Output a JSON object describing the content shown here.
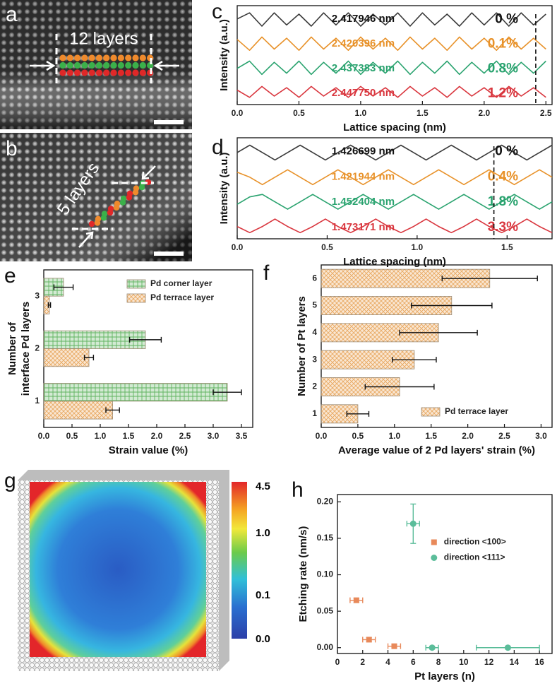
{
  "images": {
    "a": {
      "letter": "a",
      "label": "12 layers"
    },
    "b": {
      "letter": "b",
      "label": "5 layers"
    },
    "g": {
      "letter": "g",
      "colorbar_ticks": [
        "4.5",
        "1.0",
        "0.1",
        "0.0"
      ]
    }
  },
  "chart_data": [
    {
      "type": "line",
      "panel_label": "c",
      "xlabel": "Lattice spacing (nm)",
      "ylabel": "Intensity (a.u.)",
      "xlim": [
        0,
        2.55
      ],
      "ylim": [
        -0.5,
        3.6
      ],
      "xticks": [
        {
          "value": 0,
          "label": "0.0"
        },
        0.5,
        {
          "value": 1,
          "label": "1.0"
        },
        1.5,
        {
          "value": 2,
          "label": "2.0"
        },
        2.5
      ],
      "x": [
        0,
        0.1,
        0.2,
        0.3,
        0.4,
        0.5,
        0.6,
        0.7,
        0.8,
        0.9,
        1.0,
        1.1,
        1.2,
        1.3,
        1.4,
        1.5,
        1.6,
        1.7,
        1.8,
        1.9,
        2.0,
        2.1,
        2.2,
        2.3,
        2.4,
        2.5
      ],
      "series": [
        {
          "color": "#3a3a3a",
          "text_color": "#111111",
          "spacing": {
            "value": 2.417946,
            "label": "2.417946 nm"
          },
          "strain": {
            "value": 0,
            "label": "0 %"
          },
          "values": [
            3.05,
            3.3,
            2.75,
            3.3,
            2.8,
            3.25,
            2.75,
            3.3,
            2.8,
            3.3,
            2.75,
            3.25,
            2.8,
            3.3,
            2.75,
            3.3,
            2.8,
            3.25,
            2.75,
            3.3,
            2.8,
            3.3,
            2.75,
            3.3,
            2.8,
            3.25
          ]
        },
        {
          "color": "#e8922a",
          "text_color": "#e8922a",
          "spacing": {
            "value": 2.420396,
            "label": "2.420396 nm"
          },
          "strain": {
            "value": 0.1,
            "label": "0.1%"
          },
          "values": [
            2.2,
            1.75,
            2.3,
            1.8,
            2.25,
            1.75,
            2.3,
            1.8,
            2.25,
            1.75,
            2.3,
            1.8,
            2.25,
            1.75,
            2.3,
            1.8,
            2.25,
            1.75,
            2.3,
            1.8,
            2.25,
            1.75,
            2.3,
            1.8,
            2.25,
            1.8
          ]
        },
        {
          "color": "#2aa36f",
          "text_color": "#2aa36f",
          "spacing": {
            "value": 2.437383,
            "label": "2.437383 nm"
          },
          "strain": {
            "value": 0.8,
            "label": "0.8%"
          },
          "values": [
            1.0,
            1.3,
            0.75,
            1.25,
            0.8,
            1.3,
            0.75,
            1.25,
            0.8,
            1.3,
            0.75,
            1.25,
            0.8,
            1.3,
            0.75,
            1.25,
            0.8,
            1.3,
            0.75,
            1.25,
            0.8,
            1.3,
            0.75,
            1.25,
            0.8,
            1.3
          ]
        },
        {
          "color": "#d9363e",
          "text_color": "#d9363e",
          "spacing": {
            "value": 2.44775,
            "label": "2.447750 nm"
          },
          "strain": {
            "value": 1.2,
            "label": "1.2%"
          },
          "values": [
            0.1,
            -0.2,
            0.25,
            -0.15,
            0.2,
            -0.2,
            0.25,
            -0.15,
            0.2,
            -0.2,
            0.25,
            -0.15,
            0.2,
            -0.2,
            0.25,
            -0.15,
            0.2,
            -0.2,
            0.25,
            -0.15,
            0.2,
            -0.2,
            0.25,
            -0.15,
            0.2,
            -0.2
          ]
        }
      ]
    },
    {
      "type": "line",
      "panel_label": "d",
      "xlabel": "Lattice spacing (nm)",
      "ylabel": "Intensity (a.u.)",
      "xlim": [
        0,
        1.75
      ],
      "ylim": [
        -0.5,
        3.6
      ],
      "xticks": [
        {
          "value": 0,
          "label": "0.0"
        },
        0.5,
        {
          "value": 1,
          "label": "1.0"
        },
        1.5
      ],
      "x": [
        0,
        0.07,
        0.14,
        0.21,
        0.28,
        0.35,
        0.42,
        0.49,
        0.56,
        0.63,
        0.7,
        0.77,
        0.84,
        0.91,
        0.98,
        1.05,
        1.12,
        1.19,
        1.26,
        1.33,
        1.4,
        1.47,
        1.54,
        1.61,
        1.68,
        1.75
      ],
      "series": [
        {
          "color": "#3a3a3a",
          "text_color": "#111111",
          "spacing": {
            "value": 1.426699,
            "label": "1.426699 nm"
          },
          "strain": {
            "value": 0,
            "label": "0 %"
          },
          "values": [
            3.0,
            3.3,
            3.0,
            2.7,
            3.0,
            3.3,
            3.0,
            2.7,
            3.0,
            3.3,
            3.0,
            2.7,
            3.0,
            3.3,
            3.0,
            2.7,
            3.0,
            3.3,
            3.0,
            2.7,
            3.0,
            3.3,
            3.0,
            2.7,
            3.0,
            3.3
          ]
        },
        {
          "color": "#e8922a",
          "text_color": "#e8922a",
          "spacing": {
            "value": 1.421944,
            "label": "1.421944 nm"
          },
          "strain": {
            "value": 0.4,
            "label": "0.4%"
          },
          "values": [
            2.2,
            2.0,
            1.7,
            2.0,
            2.3,
            2.0,
            1.7,
            2.0,
            2.3,
            2.0,
            1.7,
            2.0,
            2.3,
            2.0,
            1.7,
            2.0,
            2.3,
            2.0,
            1.7,
            2.0,
            2.3,
            2.0,
            1.7,
            2.0,
            2.3,
            2.0
          ]
        },
        {
          "color": "#2aa36f",
          "text_color": "#2aa36f",
          "spacing": {
            "value": 1.452404,
            "label": "1.452404 nm"
          },
          "strain": {
            "value": 1.8,
            "label": "1.8%"
          },
          "values": [
            0.9,
            1.2,
            1.3,
            1.0,
            0.7,
            1.0,
            1.3,
            1.0,
            0.7,
            1.0,
            1.3,
            1.0,
            0.7,
            1.0,
            1.3,
            1.0,
            0.7,
            1.0,
            1.3,
            1.0,
            0.7,
            1.0,
            1.3,
            1.0,
            0.7,
            1.0
          ]
        },
        {
          "color": "#d9363e",
          "text_color": "#d9363e",
          "spacing": {
            "value": 1.473171,
            "label": "1.473171 nm"
          },
          "strain": {
            "value": 3.3,
            "label": "3.3%"
          },
          "values": [
            0.0,
            -0.25,
            0.0,
            0.3,
            0.0,
            -0.25,
            0.0,
            0.3,
            0.0,
            -0.25,
            0.0,
            0.3,
            0.0,
            -0.25,
            0.0,
            0.3,
            0.0,
            -0.25,
            0.0,
            0.3,
            0.0,
            -0.25,
            0.0,
            0.3,
            0.0,
            -0.25
          ]
        }
      ]
    },
    {
      "type": "hbar",
      "panel_label": "e",
      "xlabel": "Strain value (%)",
      "ylabel": [
        "Number of",
        "interface Pd layers"
      ],
      "xlim": [
        0,
        3.7
      ],
      "xticks": [
        {
          "value": 0,
          "label": "0.0"
        },
        0.5,
        {
          "value": 1,
          "label": "1.0"
        },
        1.5,
        {
          "value": 2,
          "label": "2.0"
        },
        2.5,
        {
          "value": 3,
          "label": "3.0"
        },
        3.5
      ],
      "categories": [
        "1",
        "2",
        "3"
      ],
      "legend": "upper right",
      "series": [
        {
          "name": "Pd corner layer",
          "color": "#5fb35f",
          "hatch": "grid",
          "values": [
            3.25,
            1.8,
            0.35
          ],
          "errors": [
            0.25,
            0.28,
            0.17
          ]
        },
        {
          "name": "Pd terrace layer",
          "color": "#e8a860",
          "hatch": "cross",
          "values": [
            1.22,
            0.8,
            0.1
          ],
          "errors": [
            0.12,
            0.08,
            0.02
          ]
        }
      ]
    },
    {
      "type": "hbar",
      "panel_label": "f",
      "xlabel": "Average value of 2 Pd layers' strain (%)",
      "ylabel": "Number of Pt layers",
      "xlim": [
        0,
        3.15
      ],
      "xticks": [
        {
          "value": 0,
          "label": "0.0"
        },
        0.5,
        {
          "value": 1,
          "label": "1.0"
        },
        1.5,
        {
          "value": 2,
          "label": "2.0"
        },
        2.5,
        {
          "value": 3,
          "label": "3.0"
        }
      ],
      "categories": [
        "1",
        "2",
        "3",
        "4",
        "5",
        "6"
      ],
      "legend": "lower right",
      "series": [
        {
          "name": "Pd terrace layer",
          "color": "#e8a860",
          "hatch": "cross",
          "values": [
            0.5,
            1.07,
            1.27,
            1.6,
            1.78,
            2.3
          ],
          "errors": [
            0.15,
            0.47,
            0.3,
            0.53,
            0.55,
            0.65
          ]
        }
      ]
    },
    {
      "type": "scatter",
      "panel_label": "h",
      "xlabel": "Pt layers (n)",
      "ylabel": "Etching rate (nm/s)",
      "xlim": [
        0,
        17
      ],
      "ylim": [
        -0.008,
        0.21
      ],
      "xticks": [
        0,
        2,
        4,
        6,
        8,
        10,
        12,
        14,
        16
      ],
      "yticks": [
        {
          "value": 0,
          "label": "0.00"
        },
        {
          "value": 0.05,
          "label": "0.05"
        },
        {
          "value": 0.1,
          "label": "0.10"
        },
        {
          "value": 0.15,
          "label": "0.15"
        },
        {
          "value": 0.2,
          "label": "0.20"
        }
      ],
      "legend": "center right",
      "series": [
        {
          "name": "direction <100>",
          "color": "#e8895a",
          "marker": "square",
          "x": [
            1.5,
            2.5,
            4.5
          ],
          "values": [
            0.065,
            0.011,
            0.002
          ],
          "xerr": [
            0.5,
            0.5,
            0.5
          ],
          "yerr": [
            0.003,
            0.003,
            0.002
          ]
        },
        {
          "name": "direction <111>",
          "color": "#5bbd9a",
          "marker": "circle",
          "x": [
            6,
            7.5,
            13.5
          ],
          "values": [
            0.17,
            0,
            0
          ],
          "xerr": [
            0.5,
            0.5,
            2.5
          ],
          "yerr": [
            0.027,
            0.002,
            0.002
          ]
        }
      ]
    }
  ]
}
